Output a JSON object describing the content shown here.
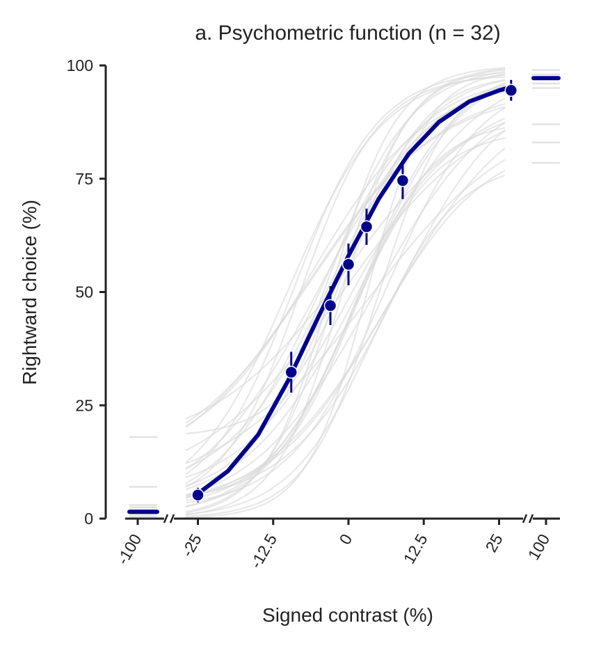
{
  "colors": {
    "fit": "#00008B",
    "subject": "#D9D9D9",
    "axis": "#222222",
    "background": "#FFFFFF"
  },
  "chart_data": {
    "type": "line",
    "title": "a. Psychometric function (n = 32)",
    "xlabel": "Signed contrast (%)",
    "ylabel": "Rightward choice (%)",
    "ylim": [
      0,
      100
    ],
    "y_ticks": [
      0,
      25,
      50,
      75,
      100
    ],
    "x_ticks": [
      {
        "label": "-100",
        "value": -100
      },
      {
        "label": "-25",
        "value": -25
      },
      {
        "label": "-12.5",
        "value": -12.5
      },
      {
        "label": "0",
        "value": 0
      },
      {
        "label": "12.5",
        "value": 12.5
      },
      {
        "label": "25",
        "value": 25
      },
      {
        "label": "100",
        "value": 100
      }
    ],
    "x_axis_breaks": true,
    "grid": false,
    "group_fit": {
      "x": [
        -35,
        -30,
        -25,
        -20,
        -15,
        -10,
        -5,
        0,
        5,
        10,
        15,
        20,
        25,
        27
      ],
      "y": [
        1.5,
        2.5,
        5.5,
        10.5,
        18.5,
        30.5,
        44.5,
        58.0,
        70.5,
        80.5,
        87.5,
        92.0,
        94.5,
        95.2
      ],
      "extreme_left": 1.5,
      "extreme_right": 97.2
    },
    "group_points": {
      "x": [
        -35,
        -100,
        -25,
        -9.5,
        -3,
        0,
        3,
        9,
        27,
        100
      ],
      "y": [
        1.5,
        1.5,
        5.2,
        32.3,
        47.0,
        56.1,
        64.4,
        74.6,
        94.5,
        97.2
      ],
      "err": [
        0.8,
        0.8,
        1.6,
        4.5,
        4.3,
        4.6,
        4.0,
        4.1,
        2.3,
        0.5
      ]
    },
    "observed_points": {
      "x": [
        -25,
        -9.5,
        -3,
        0,
        3,
        9,
        27
      ],
      "y": [
        5.2,
        32.3,
        47.0,
        56.1,
        64.4,
        74.6,
        94.5
      ],
      "err": [
        1.6,
        4.5,
        4.3,
        4.6,
        4.0,
        4.1,
        2.3
      ]
    },
    "subject_fits": [
      {
        "x0": -9,
        "s": 7.0,
        "g": 3,
        "l": 1
      },
      {
        "x0": -5,
        "s": 8.5,
        "g": 1,
        "l": 2
      },
      {
        "x0": -2,
        "s": 6.0,
        "g": 0,
        "l": 0
      },
      {
        "x0": 0,
        "s": 9.0,
        "g": 5,
        "l": 8
      },
      {
        "x0": 2,
        "s": 7.5,
        "g": 2,
        "l": 1
      },
      {
        "x0": 4,
        "s": 10.0,
        "g": 1,
        "l": 3
      },
      {
        "x0": -7,
        "s": 11.0,
        "g": 8,
        "l": 5
      },
      {
        "x0": -3,
        "s": 5.5,
        "g": 0,
        "l": 0
      },
      {
        "x0": 1,
        "s": 6.5,
        "g": 4,
        "l": 12
      },
      {
        "x0": 6,
        "s": 8.0,
        "g": 2,
        "l": 2
      },
      {
        "x0": -6,
        "s": 9.5,
        "g": 12,
        "l": 3
      },
      {
        "x0": -1,
        "s": 12.0,
        "g": 6,
        "l": 6
      },
      {
        "x0": 3,
        "s": 5.0,
        "g": 0,
        "l": 1
      },
      {
        "x0": -4,
        "s": 7.0,
        "g": 1,
        "l": 0
      },
      {
        "x0": 5,
        "s": 9.0,
        "g": 3,
        "l": 16
      },
      {
        "x0": -8,
        "s": 6.5,
        "g": 2,
        "l": 2
      },
      {
        "x0": 0,
        "s": 11.5,
        "g": 15,
        "l": 4
      },
      {
        "x0": 2,
        "s": 8.0,
        "g": 0,
        "l": 0
      },
      {
        "x0": -2,
        "s": 7.5,
        "g": 4,
        "l": 1
      },
      {
        "x0": 7,
        "s": 10.5,
        "g": 1,
        "l": 5
      },
      {
        "x0": -10,
        "s": 8.0,
        "g": 2,
        "l": 1
      },
      {
        "x0": 1,
        "s": 6.0,
        "g": 18,
        "l": 2
      },
      {
        "x0": 4,
        "s": 7.0,
        "g": 0,
        "l": 21
      },
      {
        "x0": -5,
        "s": 10.0,
        "g": 1,
        "l": 0
      },
      {
        "x0": 3,
        "s": 12.5,
        "g": 5,
        "l": 9
      },
      {
        "x0": -1,
        "s": 5.5,
        "g": 0,
        "l": 0
      },
      {
        "x0": 8,
        "s": 9.0,
        "g": 3,
        "l": 3
      },
      {
        "x0": -3,
        "s": 8.5,
        "g": 6,
        "l": 2
      },
      {
        "x0": 0,
        "s": 7.0,
        "g": 1,
        "l": 14
      },
      {
        "x0": 5,
        "s": 6.0,
        "g": 0,
        "l": 1
      },
      {
        "x0": -6,
        "s": 11.0,
        "g": 10,
        "l": 4
      },
      {
        "x0": 2,
        "s": 9.5,
        "g": 2,
        "l": 0
      }
    ],
    "subject_extremes_left": [
      0.5,
      1.0,
      1.5,
      2.0,
      2.5,
      3.0,
      7.0,
      18.0
    ],
    "subject_extremes_right": [
      78.5,
      83.0,
      87.0,
      95.0,
      96.0,
      97.0,
      98.0,
      99.0
    ]
  }
}
